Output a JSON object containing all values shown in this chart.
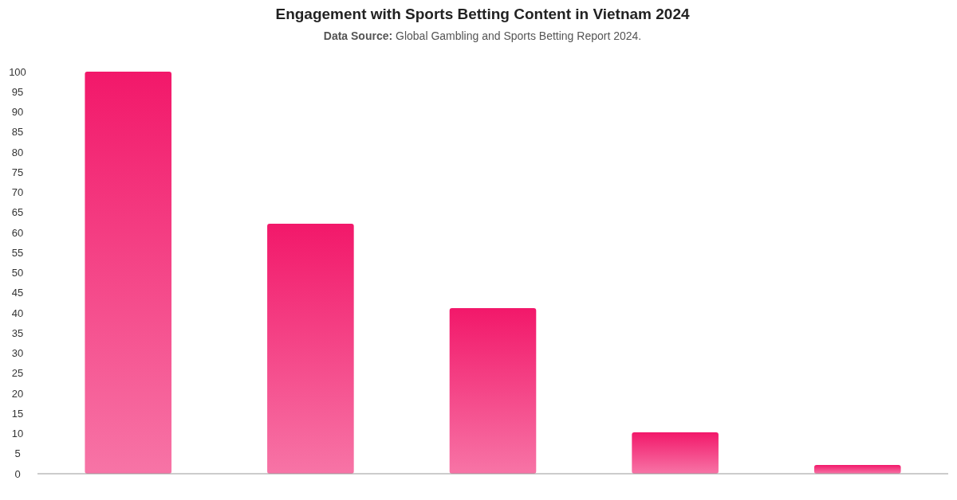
{
  "chart_data": {
    "type": "bar",
    "title": "Engagement with Sports Betting Content in Vietnam 2024",
    "subtitle": "Data Source: Global Gambling and Sports Betting Report 2024.",
    "categories": [
      null,
      null,
      null,
      null,
      null
    ],
    "values": [
      100,
      62.2,
      41.2,
      10.3,
      2.2
    ],
    "color": "#f2186a",
    "ylim": [
      0,
      100
    ],
    "yticks": [
      0,
      5,
      10,
      15,
      20,
      25,
      30,
      35,
      40,
      45,
      50,
      55,
      60,
      65,
      70,
      75,
      80,
      85,
      90,
      95,
      100
    ],
    "grid": false
  }
}
